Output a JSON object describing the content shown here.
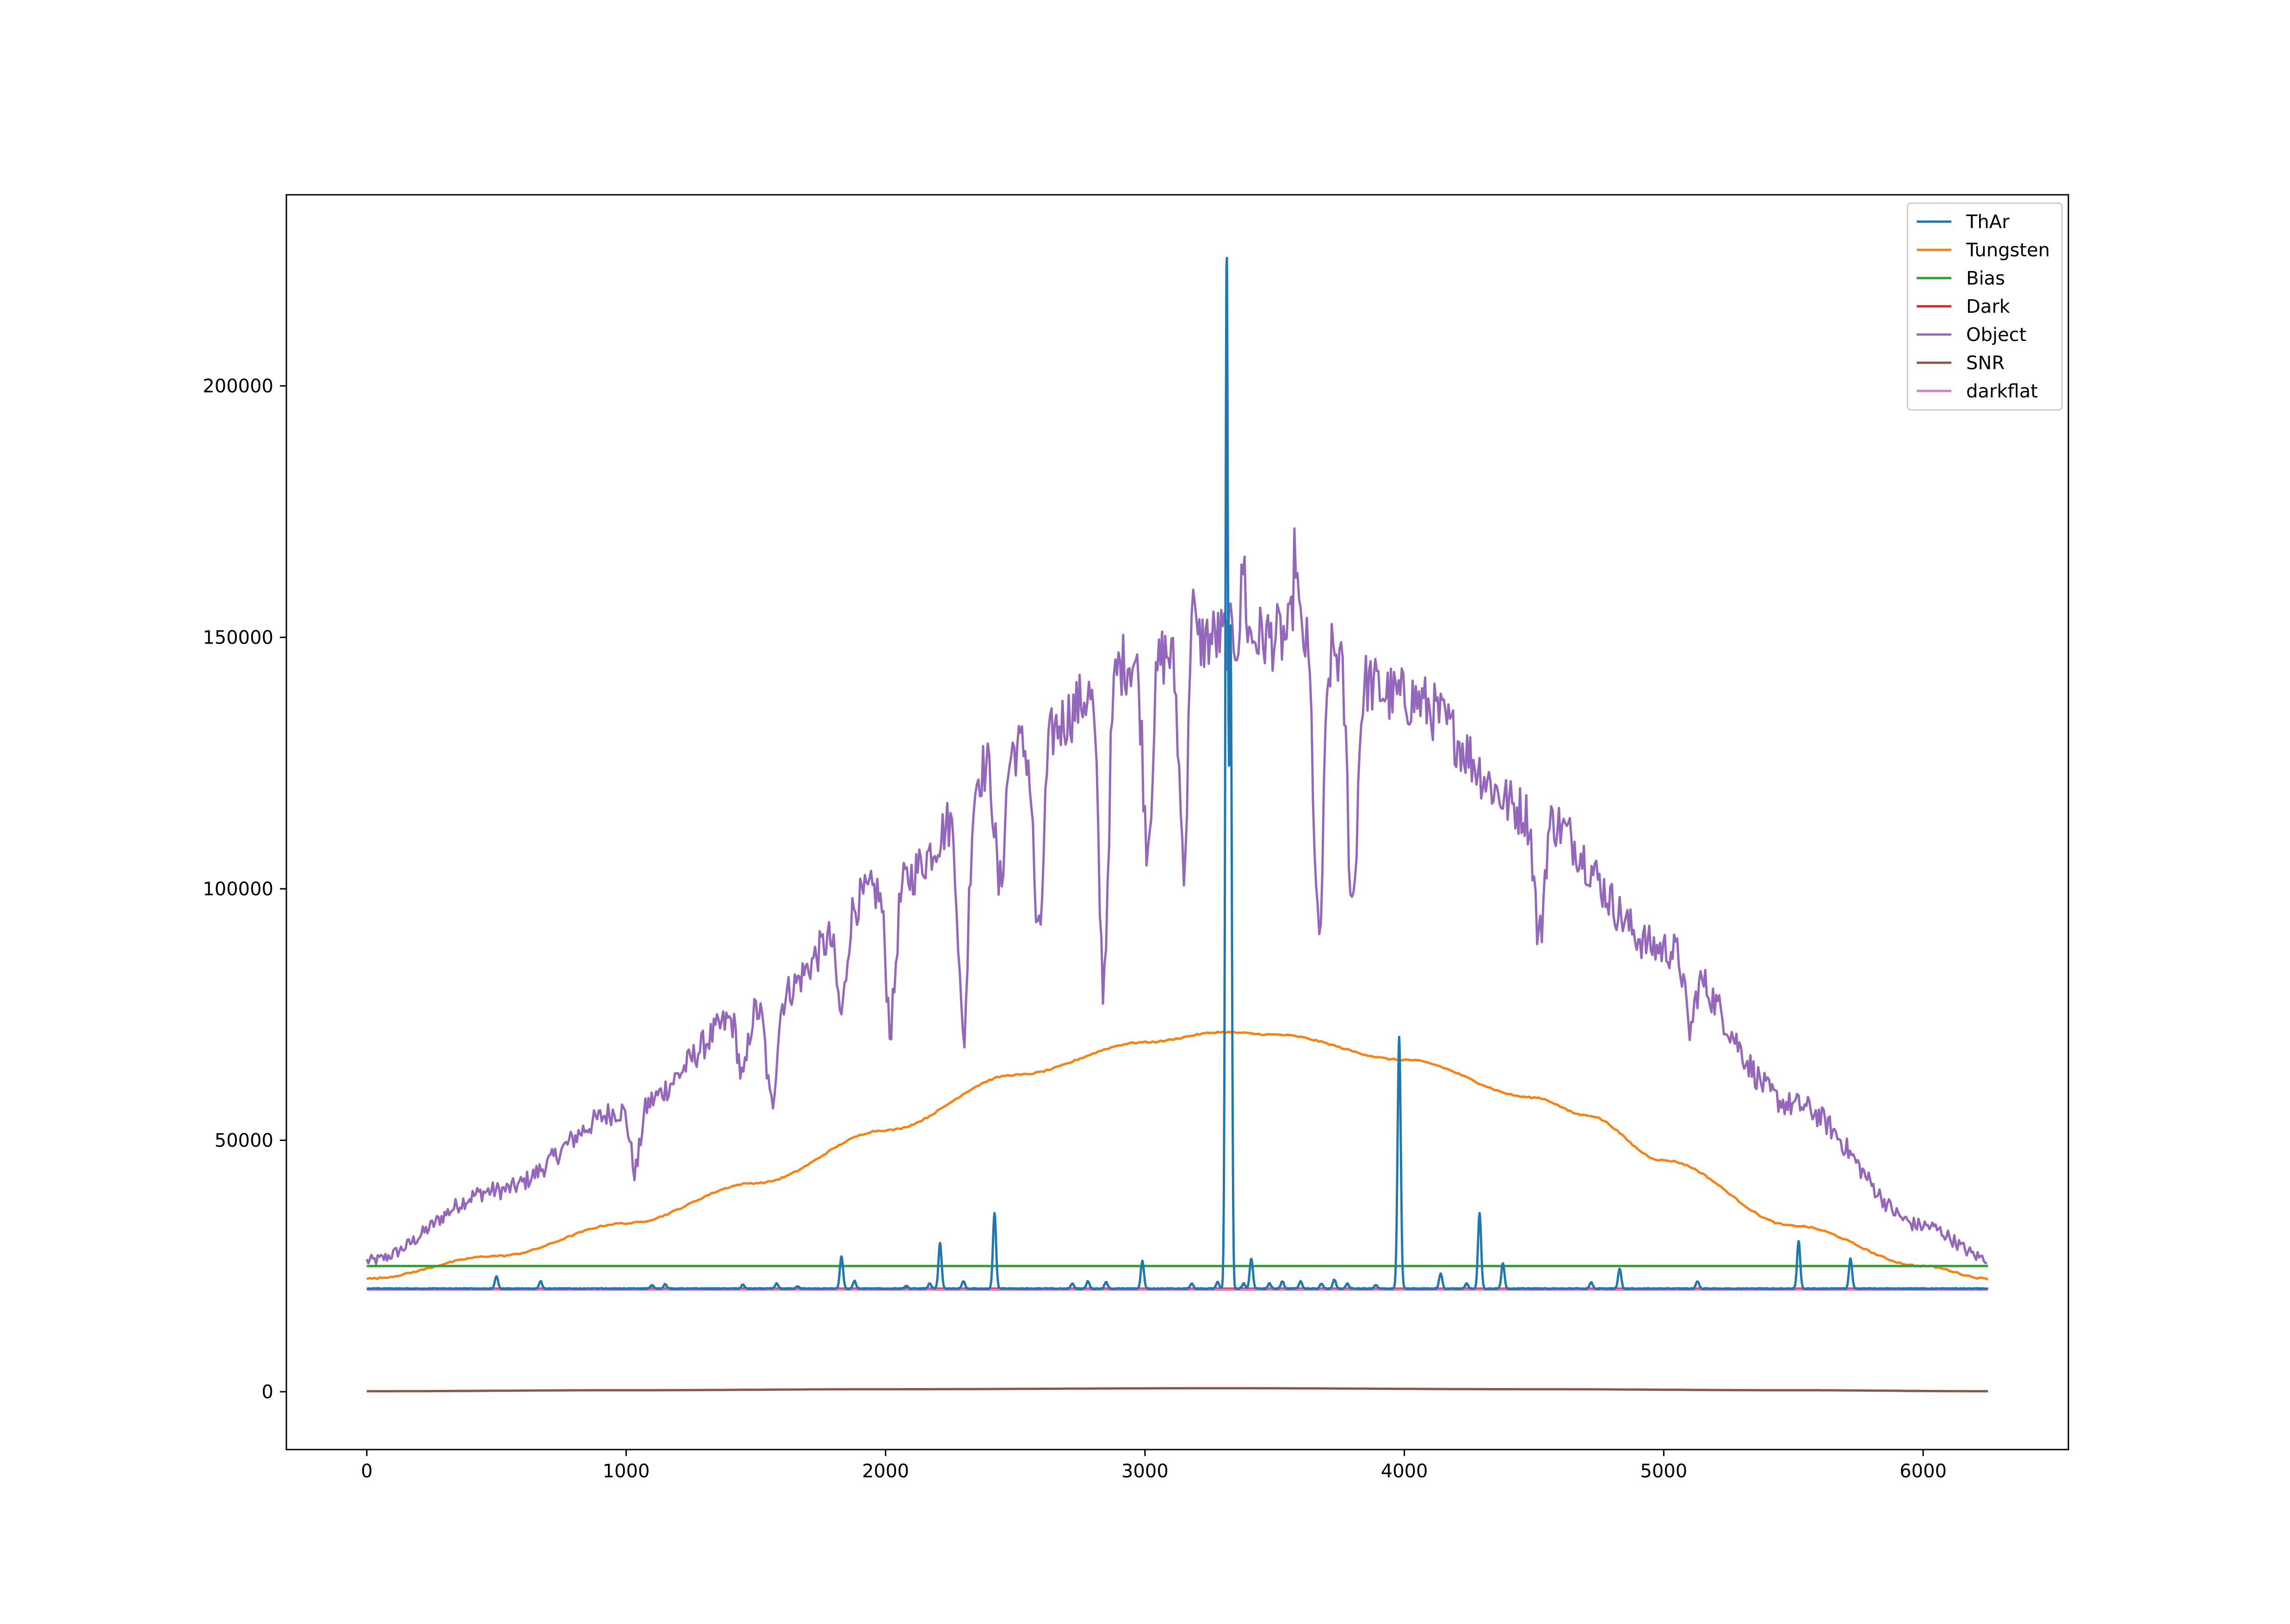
{
  "chart_data": {
    "type": "line",
    "title": "",
    "xlabel": "",
    "ylabel": "",
    "xlim": [
      -310,
      6560
    ],
    "ylim": [
      -11500,
      238000
    ],
    "xticks": [
      0,
      1000,
      2000,
      3000,
      4000,
      5000,
      6000
    ],
    "xtick_labels": [
      "0",
      "1000",
      "2000",
      "3000",
      "4000",
      "5000",
      "6000"
    ],
    "yticks": [
      0,
      50000,
      100000,
      150000,
      200000
    ],
    "ytick_labels": [
      "0",
      "50000",
      "100000",
      "150000",
      "200000"
    ],
    "grid": false,
    "legend_position": "top-right",
    "x_range": [
      0,
      6250
    ],
    "series": [
      {
        "name": "ThAr",
        "color": "#1f77b4",
        "baseline": 20500,
        "peaks": [
          {
            "x": 500,
            "y": 23000
          },
          {
            "x": 670,
            "y": 22000
          },
          {
            "x": 1100,
            "y": 21200
          },
          {
            "x": 1150,
            "y": 21400
          },
          {
            "x": 1450,
            "y": 21300
          },
          {
            "x": 1580,
            "y": 21500
          },
          {
            "x": 1660,
            "y": 21000
          },
          {
            "x": 1830,
            "y": 27000
          },
          {
            "x": 1880,
            "y": 22000
          },
          {
            "x": 2080,
            "y": 21000
          },
          {
            "x": 2170,
            "y": 21500
          },
          {
            "x": 2210,
            "y": 29500
          },
          {
            "x": 2300,
            "y": 22000
          },
          {
            "x": 2420,
            "y": 35500
          },
          {
            "x": 2720,
            "y": 21500
          },
          {
            "x": 2780,
            "y": 22000
          },
          {
            "x": 2850,
            "y": 21800
          },
          {
            "x": 2990,
            "y": 26000
          },
          {
            "x": 3180,
            "y": 21500
          },
          {
            "x": 3280,
            "y": 21800
          },
          {
            "x": 3315,
            "y": 227000
          },
          {
            "x": 3330,
            "y": 150000
          },
          {
            "x": 3380,
            "y": 21500
          },
          {
            "x": 3410,
            "y": 26500
          },
          {
            "x": 3480,
            "y": 21500
          },
          {
            "x": 3530,
            "y": 22000
          },
          {
            "x": 3600,
            "y": 22000
          },
          {
            "x": 3680,
            "y": 21500
          },
          {
            "x": 3730,
            "y": 22300
          },
          {
            "x": 3780,
            "y": 21500
          },
          {
            "x": 3890,
            "y": 21200
          },
          {
            "x": 3980,
            "y": 70500
          },
          {
            "x": 4140,
            "y": 23500
          },
          {
            "x": 4240,
            "y": 21500
          },
          {
            "x": 4290,
            "y": 35500
          },
          {
            "x": 4380,
            "y": 25500
          },
          {
            "x": 4720,
            "y": 21800
          },
          {
            "x": 4830,
            "y": 24500
          },
          {
            "x": 5130,
            "y": 22000
          },
          {
            "x": 5520,
            "y": 30000
          },
          {
            "x": 5720,
            "y": 26500
          }
        ]
      },
      {
        "name": "Tungsten",
        "color": "#ff7f0e",
        "points": [
          [
            0,
            22500
          ],
          [
            500,
            27000
          ],
          [
            1000,
            33500
          ],
          [
            1500,
            41500
          ],
          [
            2000,
            52000
          ],
          [
            2500,
            63000
          ],
          [
            3000,
            69500
          ],
          [
            3300,
            71500
          ],
          [
            3500,
            71000
          ],
          [
            4000,
            66000
          ],
          [
            4500,
            58500
          ],
          [
            4700,
            55000
          ],
          [
            5000,
            46000
          ],
          [
            5500,
            33000
          ],
          [
            6000,
            25000
          ],
          [
            6250,
            22500
          ]
        ]
      },
      {
        "name": "Bias",
        "color": "#2ca02c",
        "points": [
          [
            0,
            25000
          ],
          [
            6250,
            25000
          ]
        ]
      },
      {
        "name": "Dark",
        "color": "#d62728",
        "points": [
          [
            0,
            20500
          ],
          [
            6250,
            20500
          ]
        ]
      },
      {
        "name": "Object",
        "color": "#9467bd",
        "envelope": [
          [
            0,
            26000
          ],
          [
            500,
            40000
          ],
          [
            1000,
            56000
          ],
          [
            1500,
            76000
          ],
          [
            2000,
            100000
          ],
          [
            2500,
            128000
          ],
          [
            3000,
            146000
          ],
          [
            3300,
            150000
          ],
          [
            3600,
            150000
          ],
          [
            4000,
            138000
          ],
          [
            4500,
            115000
          ],
          [
            5000,
            88000
          ],
          [
            5500,
            57000
          ],
          [
            6000,
            33000
          ],
          [
            6250,
            26500
          ]
        ],
        "absorption_dips": [
          {
            "x": 1035,
            "y": 44000
          },
          {
            "x": 1450,
            "y": 62000
          },
          {
            "x": 1560,
            "y": 57000
          },
          {
            "x": 1830,
            "y": 75000
          },
          {
            "x": 2020,
            "y": 73000
          },
          {
            "x": 2300,
            "y": 70000
          },
          {
            "x": 2440,
            "y": 100000
          },
          {
            "x": 2590,
            "y": 89000
          },
          {
            "x": 2840,
            "y": 82000
          },
          {
            "x": 3010,
            "y": 110000
          },
          {
            "x": 3150,
            "y": 107000
          },
          {
            "x": 3670,
            "y": 89000
          },
          {
            "x": 3800,
            "y": 97000
          },
          {
            "x": 4520,
            "y": 90000
          },
          {
            "x": 5100,
            "y": 72000
          }
        ],
        "emission_spikes": [
          {
            "x": 3180,
            "y": 169000
          },
          {
            "x": 3580,
            "y": 167500
          },
          {
            "x": 3380,
            "y": 165000
          }
        ]
      },
      {
        "name": "SNR",
        "color": "#8c564b",
        "points": [
          [
            0,
            100
          ],
          [
            1000,
            300
          ],
          [
            2000,
            500
          ],
          [
            3300,
            700
          ],
          [
            4500,
            500
          ],
          [
            5500,
            300
          ],
          [
            6250,
            100
          ]
        ]
      },
      {
        "name": "darkflat",
        "color": "#e377c2",
        "points": [
          [
            0,
            20300
          ],
          [
            6250,
            20300
          ]
        ]
      }
    ]
  }
}
